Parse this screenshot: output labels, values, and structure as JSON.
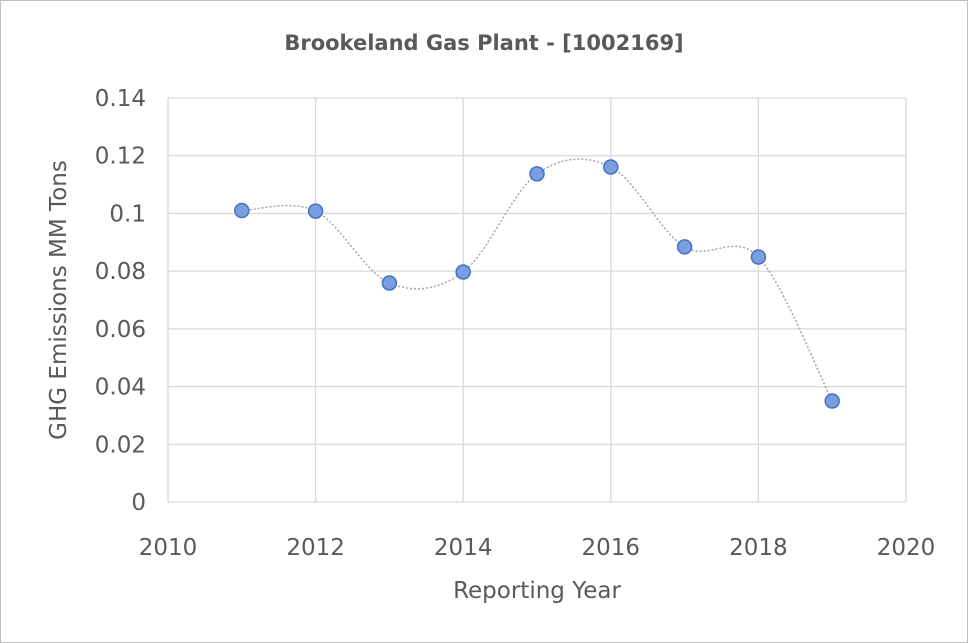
{
  "chart_data": {
    "type": "scatter",
    "title": "Brookeland Gas Plant - [1002169]",
    "xlabel": "Reporting Year",
    "ylabel": "GHG Emissions MM Tons",
    "xlim": [
      2010,
      2020
    ],
    "ylim": [
      0,
      0.14
    ],
    "xticks": [
      "2010",
      "2012",
      "2014",
      "2016",
      "2018",
      "2020"
    ],
    "yticks": [
      "0",
      "0.02",
      "0.04",
      "0.06",
      "0.08",
      "0.1",
      "0.12",
      "0.14"
    ],
    "grid": true,
    "line_style": "smoothed dotted",
    "colors": {
      "marker_fill": "#7b9ee0",
      "marker_edge": "#4472c4",
      "line": "#a6a6a6",
      "grid": "#d9d9d9"
    },
    "x": [
      2011,
      2012,
      2013,
      2014,
      2015,
      2016,
      2017,
      2018,
      2019
    ],
    "y": [
      0.101,
      0.1008,
      0.0759,
      0.0797,
      0.1137,
      0.1161,
      0.0884,
      0.0849,
      0.035
    ]
  }
}
